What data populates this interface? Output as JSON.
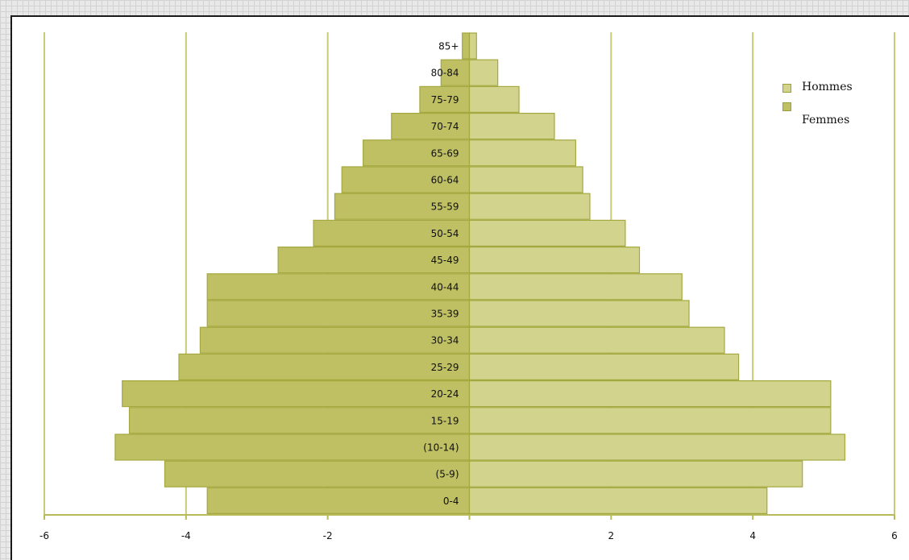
{
  "chart_data": {
    "type": "bar",
    "categories": [
      "0-4",
      "(5-9)",
      "(10-14)",
      "15-19",
      "20-24",
      "25-29",
      "30-34",
      "35-39",
      "40-44",
      "45-49",
      "50-54",
      "55-59",
      "60-64",
      "65-69",
      "70-74",
      "75-79",
      "80-84",
      "85+"
    ],
    "series": [
      {
        "name": "Hommes",
        "color": "#d2d48e",
        "side": "right",
        "values": [
          4.2,
          4.7,
          5.3,
          5.1,
          5.1,
          3.8,
          3.6,
          3.1,
          3.0,
          2.4,
          2.2,
          1.7,
          1.6,
          1.5,
          1.2,
          0.7,
          0.4,
          0.1
        ]
      },
      {
        "name": "Femmes",
        "color": "#bfbf63",
        "side": "left",
        "values": [
          3.7,
          4.3,
          5.0,
          4.8,
          4.9,
          4.1,
          3.8,
          3.7,
          3.7,
          2.7,
          2.2,
          1.9,
          1.8,
          1.5,
          1.1,
          0.7,
          0.4,
          0.1
        ]
      }
    ],
    "xlim": [
      -6,
      6
    ],
    "xticks": [
      "-6",
      "-4",
      "-2",
      "",
      "2",
      "4",
      "6"
    ],
    "grid": true,
    "legend": "top-right",
    "title": "",
    "xlabel": "",
    "ylabel": ""
  },
  "legend": {
    "hommes_label": "Hommes",
    "femmes_label": "Femmes",
    "hommes_color": "#d2d48e",
    "femmes_color": "#bfbf63"
  }
}
